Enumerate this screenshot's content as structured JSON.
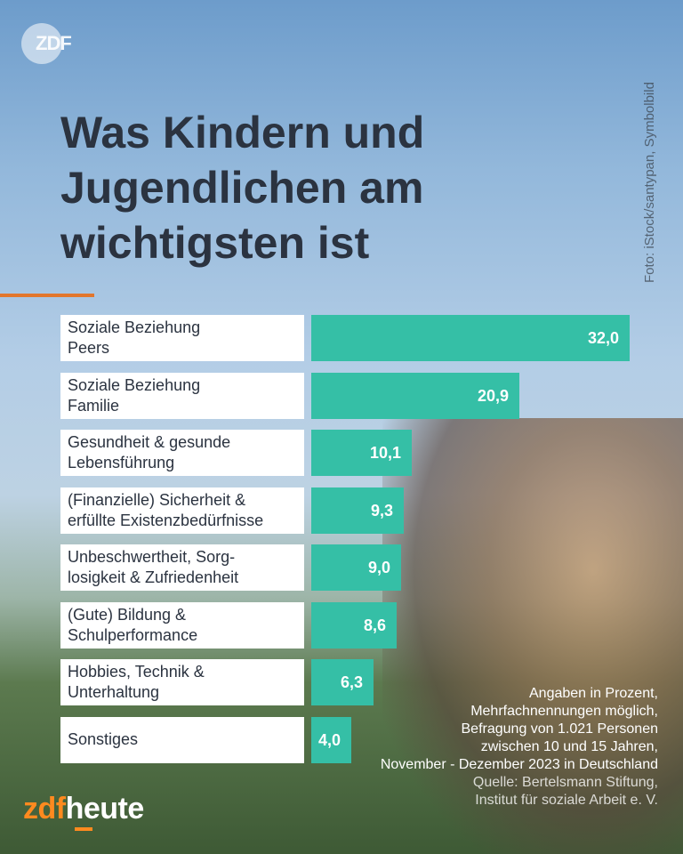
{
  "logo_top": "ZDF",
  "photo_credit": "Foto: iStock/santypan, Symbolbild",
  "title": "Was Kindern und Jugendlichen am wichtigsten ist",
  "chart_data": {
    "type": "bar",
    "orientation": "horizontal",
    "title": "Was Kindern und Jugendlichen am wichtigsten ist",
    "categories": [
      "Soziale Beziehung\nPeers",
      "Soziale Beziehung\nFamilie",
      "Gesundheit & gesunde\nLebensführung",
      "(Finanzielle) Sicherheit &\nerfüllte Existenzbedürfnisse",
      "Unbeschwertheit, Sorg-\nlosigkeit & Zufriedenheit",
      "(Gute) Bildung &\nSchulperformance",
      "Hobbies, Technik &\nUnterhaltung",
      "Sonstiges"
    ],
    "values": [
      32.0,
      20.9,
      10.1,
      9.3,
      9.0,
      8.6,
      6.3,
      4.0
    ],
    "value_labels": [
      "32,0",
      "20,9",
      "10,1",
      "9,3",
      "9,0",
      "8,6",
      "6,3",
      "4,0"
    ],
    "xlim": [
      0,
      32.0
    ],
    "bar_color": "#35bfa6",
    "grid": false
  },
  "notes": [
    "Angaben in Prozent,",
    "Mehrfachnennungen möglich,",
    "Befragung von 1.021 Personen",
    "zwischen 10 und 15 Jahren,",
    "November - Dezember 2023 in Deutschland"
  ],
  "source": [
    "Quelle: Bertelsmann Stiftung,",
    "Institut für soziale Arbeit e. V."
  ],
  "brand": {
    "part1": "zdf",
    "part2": "heute",
    "color_zdf": "#ff8a1f"
  },
  "colors": {
    "title": "#2b3340",
    "accent": "#e2762c"
  }
}
